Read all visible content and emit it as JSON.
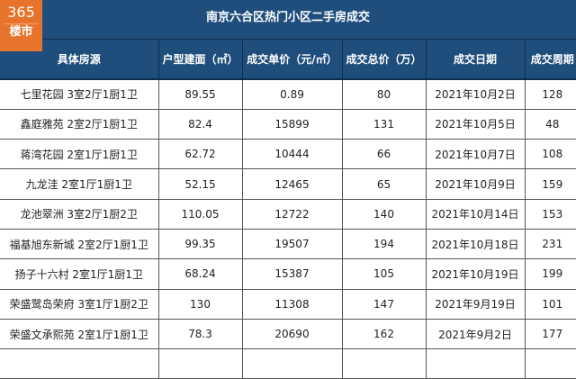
{
  "logo": {
    "number": "365",
    "text": "楼市"
  },
  "title": "南京六合区热门小区二手房成交",
  "columns": [
    "具体房源",
    "户型建面（㎡）",
    "成交单价（元/㎡）",
    "成交总价（万）",
    "成交日期",
    "成交周期"
  ],
  "rows": [
    [
      "七里花园 3室2厅1厨1卫",
      "89.55",
      "0.89",
      "80",
      "2021年10月2日",
      "128"
    ],
    [
      "鑫庭雅苑 2室2厅1厨1卫",
      "82.4",
      "15899",
      "131",
      "2021年10月5日",
      "48"
    ],
    [
      "蒋湾花园 2室1厅1厨1卫",
      "62.72",
      "10444",
      "66",
      "2021年10月7日",
      "108"
    ],
    [
      "九龙洼 2室1厅1厨1卫",
      "52.15",
      "12465",
      "65",
      "2021年10月9日",
      "159"
    ],
    [
      "龙池翠洲 3室2厅1厨2卫",
      "110.05",
      "12722",
      "140",
      "2021年10月14日",
      "153"
    ],
    [
      "福基旭东新城 2室2厅1厨1卫",
      "99.35",
      "19507",
      "194",
      "2021年10月18日",
      "231"
    ],
    [
      "扬子十六村 2室1厅1厨1卫",
      "68.24",
      "15387",
      "105",
      "2021年10月19日",
      "199"
    ],
    [
      "荣盛鹭岛荣府 3室1厅1厨2卫",
      "130",
      "11308",
      "147",
      "2021年9月19日",
      "101"
    ],
    [
      "荣盛文承熙苑 2室1厅1厨1卫",
      "78.3",
      "20690",
      "162",
      "2021年9月2日",
      "177"
    ],
    [
      "",
      "",
      "",
      "",
      "",
      ""
    ]
  ]
}
